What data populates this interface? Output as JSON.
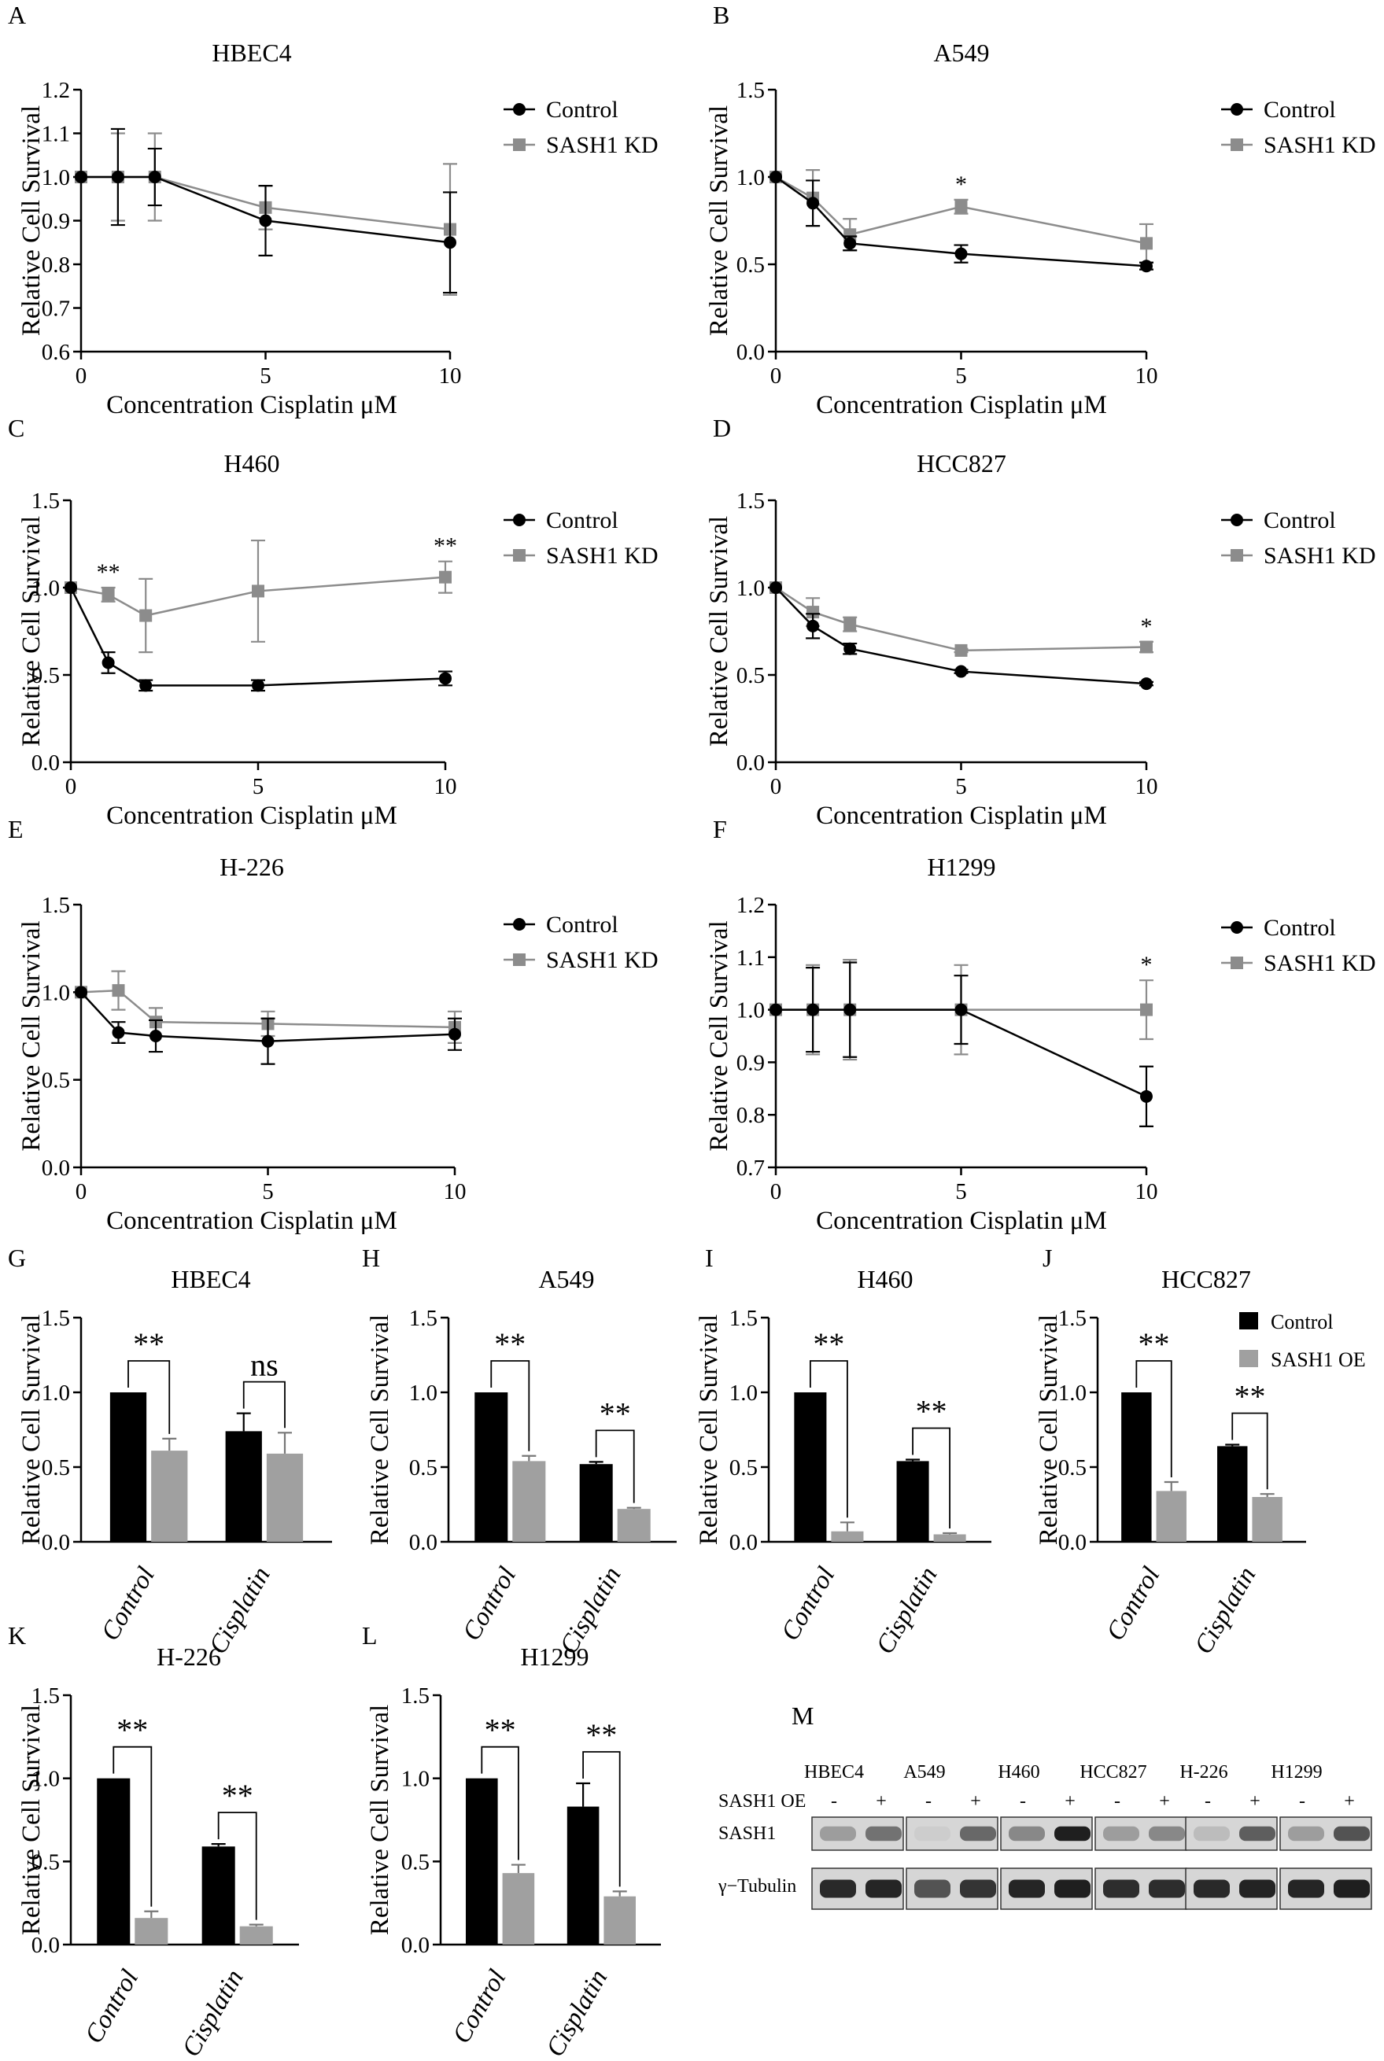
{
  "figure": {
    "western_blot": {
      "label": "M",
      "cell_lines": [
        "HBEC4",
        "A549",
        "H460",
        "HCC827",
        "H-226",
        "H1299"
      ],
      "condition_label": "SASH1 OE",
      "minus": "-",
      "plus": "+",
      "rows": [
        "SASH1",
        "γ−Tubulin"
      ]
    }
  },
  "chart_data": [
    {
      "label": "A",
      "type": "line",
      "title": "HBEC4",
      "xlabel": "Concentration Cisplatin μM",
      "ylabel": "Relative Cell Survival",
      "x": [
        0,
        1,
        2,
        5,
        10
      ],
      "xticks": [
        0,
        5,
        10
      ],
      "xticklabels": [
        "0",
        "5",
        "10"
      ],
      "xlim": [
        0,
        10
      ],
      "ylim": [
        0.6,
        1.2
      ],
      "yticks": [
        0.6,
        0.7,
        0.8,
        0.9,
        1.0,
        1.1,
        1.2
      ],
      "yticklabels": [
        "0.6",
        "0.7",
        "0.8",
        "0.9",
        "1.0",
        "1.1",
        "1.2"
      ],
      "series": [
        {
          "name": "Control",
          "color": "#000000",
          "marker": "circle",
          "values": [
            1.0,
            1.0,
            1.0,
            0.9,
            0.85
          ],
          "err": [
            0,
            0.11,
            0.065,
            0.08,
            0.115
          ]
        },
        {
          "name": "SASH1 KD",
          "color": "#8c8c8c",
          "marker": "square",
          "values": [
            1.0,
            1.0,
            1.0,
            0.93,
            0.88
          ],
          "err": [
            0,
            0.1,
            0.1,
            0.05,
            0.15
          ]
        }
      ],
      "annotations": [],
      "legend": "right"
    },
    {
      "label": "B",
      "type": "line",
      "title": "A549",
      "xlabel": "Concentration Cisplatin μM",
      "ylabel": "Relative Cell Survival",
      "x": [
        0,
        1,
        2,
        5,
        10
      ],
      "xticks": [
        0,
        5,
        10
      ],
      "xticklabels": [
        "0",
        "5",
        "10"
      ],
      "xlim": [
        0,
        10
      ],
      "ylim": [
        0,
        1.5
      ],
      "yticks": [
        0,
        0.5,
        1.0,
        1.5
      ],
      "yticklabels": [
        "0.0",
        "0.5",
        "1.0",
        "1.5"
      ],
      "series": [
        {
          "name": "Control",
          "color": "#000000",
          "marker": "circle",
          "values": [
            1.0,
            0.85,
            0.62,
            0.56,
            0.49
          ],
          "err": [
            0,
            0.13,
            0.04,
            0.05,
            0.02
          ]
        },
        {
          "name": "SASH1 KD",
          "color": "#8c8c8c",
          "marker": "square",
          "values": [
            1.0,
            0.88,
            0.67,
            0.83,
            0.62
          ],
          "err": [
            0,
            0.16,
            0.09,
            0.04,
            0.11
          ]
        }
      ],
      "annotations": [
        {
          "x": 5,
          "text": "*"
        }
      ],
      "legend": "right"
    },
    {
      "label": "C",
      "type": "line",
      "title": "H460",
      "xlabel": "Concentration Cisplatin μM",
      "ylabel": "Relative Cell Survival",
      "x": [
        0,
        1,
        2,
        5,
        10
      ],
      "xticks": [
        0,
        5,
        10
      ],
      "xticklabels": [
        "0",
        "5",
        "10"
      ],
      "xlim": [
        0,
        10
      ],
      "ylim": [
        0,
        1.5
      ],
      "yticks": [
        0,
        0.5,
        1.0,
        1.5
      ],
      "yticklabels": [
        "0.0",
        "0.5",
        "1.0",
        "1.5"
      ],
      "series": [
        {
          "name": "Control",
          "color": "#000000",
          "marker": "circle",
          "values": [
            1.0,
            0.57,
            0.44,
            0.44,
            0.48
          ],
          "err": [
            0,
            0.06,
            0.03,
            0.03,
            0.04
          ]
        },
        {
          "name": "SASH1 KD",
          "color": "#8c8c8c",
          "marker": "square",
          "values": [
            1.0,
            0.96,
            0.84,
            0.98,
            1.06
          ],
          "err": [
            0,
            0.04,
            0.21,
            0.29,
            0.09
          ]
        }
      ],
      "annotations": [
        {
          "x": 1,
          "text": "**"
        },
        {
          "x": 10,
          "text": "**"
        }
      ],
      "legend": "right"
    },
    {
      "label": "D",
      "type": "line",
      "title": "HCC827",
      "xlabel": "Concentration Cisplatin μM",
      "ylabel": "Relative Cell Survival",
      "x": [
        0,
        1,
        2,
        5,
        10
      ],
      "xticks": [
        0,
        5,
        10
      ],
      "xticklabels": [
        "0",
        "5",
        "10"
      ],
      "xlim": [
        0,
        10
      ],
      "ylim": [
        0,
        1.5
      ],
      "yticks": [
        0,
        0.5,
        1.0,
        1.5
      ],
      "yticklabels": [
        "0.0",
        "0.5",
        "1.0",
        "1.5"
      ],
      "series": [
        {
          "name": "Control",
          "color": "#000000",
          "marker": "circle",
          "values": [
            1.0,
            0.78,
            0.65,
            0.52,
            0.45
          ],
          "err": [
            0,
            0.07,
            0.03,
            0.01,
            0.01
          ]
        },
        {
          "name": "SASH1 KD",
          "color": "#8c8c8c",
          "marker": "square",
          "values": [
            1.0,
            0.86,
            0.79,
            0.64,
            0.66
          ],
          "err": [
            0,
            0.08,
            0.04,
            0.01,
            0.03
          ]
        }
      ],
      "annotations": [
        {
          "x": 10,
          "text": "*"
        }
      ],
      "legend": "right"
    },
    {
      "label": "E",
      "type": "line",
      "title": "H-226",
      "xlabel": "Concentration Cisplatin μM",
      "ylabel": "Relative Cell Survival",
      "x": [
        0,
        1,
        2,
        5,
        10
      ],
      "xticks": [
        0,
        5,
        10
      ],
      "xticklabels": [
        "0",
        "5",
        "10"
      ],
      "xlim": [
        0,
        10
      ],
      "ylim": [
        0,
        1.5
      ],
      "yticks": [
        0,
        0.5,
        1.0,
        1.5
      ],
      "yticklabels": [
        "0.0",
        "0.5",
        "1.0",
        "1.5"
      ],
      "series": [
        {
          "name": "Control",
          "color": "#000000",
          "marker": "circle",
          "values": [
            1.0,
            0.77,
            0.75,
            0.72,
            0.76
          ],
          "err": [
            0,
            0.06,
            0.09,
            0.13,
            0.09
          ]
        },
        {
          "name": "SASH1 KD",
          "color": "#8c8c8c",
          "marker": "square",
          "values": [
            1.0,
            1.01,
            0.83,
            0.82,
            0.8
          ],
          "err": [
            0,
            0.11,
            0.08,
            0.07,
            0.09
          ]
        }
      ],
      "annotations": [],
      "legend": "right"
    },
    {
      "label": "F",
      "type": "line",
      "title": "H1299",
      "xlabel": "Concentration Cisplatin μM",
      "ylabel": "Relative Cell Survival",
      "x": [
        0,
        1,
        2,
        5,
        10
      ],
      "xticks": [
        0,
        5,
        10
      ],
      "xticklabels": [
        "0",
        "5",
        "10"
      ],
      "xlim": [
        0,
        10
      ],
      "ylim": [
        0.7,
        1.2
      ],
      "yticks": [
        0.7,
        0.8,
        0.9,
        1.0,
        1.1,
        1.2
      ],
      "yticklabels": [
        "0.7",
        "0.8",
        "0.9",
        "1.0",
        "1.1",
        "1.2"
      ],
      "series": [
        {
          "name": "Control",
          "color": "#000000",
          "marker": "circle",
          "values": [
            1.0,
            1.0,
            1.0,
            1.0,
            0.835
          ],
          "err": [
            0,
            0.08,
            0.09,
            0.065,
            0.057
          ]
        },
        {
          "name": "SASH1 KD",
          "color": "#8c8c8c",
          "marker": "square",
          "values": [
            1.0,
            1.0,
            1.0,
            1.0,
            1.0
          ],
          "err": [
            0,
            0.085,
            0.095,
            0.085,
            0.056
          ]
        }
      ],
      "annotations": [
        {
          "x": 10,
          "text": "*"
        }
      ],
      "legend": "right"
    },
    {
      "label": "G",
      "type": "bar",
      "title": "HBEC4",
      "ylabel": "Relative Cell Survival",
      "categories": [
        "Control",
        "Cisplatin"
      ],
      "ylim": [
        0,
        1.5
      ],
      "yticks": [
        0,
        0.5,
        1.0,
        1.5
      ],
      "yticklabels": [
        "0.0",
        "0.5",
        "1.0",
        "1.5"
      ],
      "series": [
        {
          "name": "Control",
          "color": "#000000",
          "values": [
            1.0,
            0.74
          ],
          "err": [
            0,
            0.12
          ]
        },
        {
          "name": "SASH1 OE",
          "color": "#a0a0a0",
          "values": [
            0.61,
            0.59
          ],
          "err": [
            0.08,
            0.14
          ]
        }
      ],
      "significance": [
        "**",
        "ns"
      ]
    },
    {
      "label": "H",
      "type": "bar",
      "title": "A549",
      "ylabel": "Relative Cell Survival",
      "categories": [
        "Control",
        "Cisplatin"
      ],
      "ylim": [
        0,
        1.5
      ],
      "yticks": [
        0,
        0.5,
        1.0,
        1.5
      ],
      "yticklabels": [
        "0.0",
        "0.5",
        "1.0",
        "1.5"
      ],
      "series": [
        {
          "name": "Control",
          "color": "#000000",
          "values": [
            1.0,
            0.52
          ],
          "err": [
            0,
            0.015
          ]
        },
        {
          "name": "SASH1 OE",
          "color": "#a0a0a0",
          "values": [
            0.54,
            0.22
          ],
          "err": [
            0.035,
            0.008
          ]
        }
      ],
      "significance": [
        "**",
        "**"
      ]
    },
    {
      "label": "I",
      "type": "bar",
      "title": "H460",
      "ylabel": "Relative Cell Survival",
      "categories": [
        "Control",
        "Cisplatin"
      ],
      "ylim": [
        0,
        1.5
      ],
      "yticks": [
        0,
        0.5,
        1.0,
        1.5
      ],
      "yticklabels": [
        "0.0",
        "0.5",
        "1.0",
        "1.5"
      ],
      "series": [
        {
          "name": "Control",
          "color": "#000000",
          "values": [
            1.0,
            0.54
          ],
          "err": [
            0,
            0.01
          ]
        },
        {
          "name": "SASH1 OE",
          "color": "#a0a0a0",
          "values": [
            0.07,
            0.05
          ],
          "err": [
            0.06,
            0.008
          ]
        }
      ],
      "significance": [
        "**",
        "**"
      ]
    },
    {
      "label": "J",
      "type": "bar",
      "title": "HCC827",
      "ylabel": "Relative Cell Survival",
      "categories": [
        "Control",
        "Cisplatin"
      ],
      "ylim": [
        0,
        1.5
      ],
      "yticks": [
        0,
        0.5,
        1.0,
        1.5
      ],
      "yticklabels": [
        "0.0",
        "0.5",
        "1.0",
        "1.5"
      ],
      "series": [
        {
          "name": "Control",
          "color": "#000000",
          "values": [
            1.0,
            0.64
          ],
          "err": [
            0,
            0.01
          ]
        },
        {
          "name": "SASH1 OE",
          "color": "#a0a0a0",
          "values": [
            0.34,
            0.3
          ],
          "err": [
            0.06,
            0.02
          ]
        }
      ],
      "significance": [
        "**",
        "**"
      ],
      "legend": "top-right"
    },
    {
      "label": "K",
      "type": "bar",
      "title": "H-226",
      "ylabel": "Relative Cell Survival",
      "categories": [
        "Control",
        "Cisplatin"
      ],
      "ylim": [
        0,
        1.5
      ],
      "yticks": [
        0,
        0.5,
        1.0,
        1.5
      ],
      "yticklabels": [
        "0.0",
        "0.5",
        "1.0",
        "1.5"
      ],
      "series": [
        {
          "name": "Control",
          "color": "#000000",
          "values": [
            1.0,
            0.59
          ],
          "err": [
            0,
            0.015
          ]
        },
        {
          "name": "SASH1 OE",
          "color": "#a0a0a0",
          "values": [
            0.16,
            0.11
          ],
          "err": [
            0.04,
            0.01
          ]
        }
      ],
      "significance": [
        "**",
        "**"
      ]
    },
    {
      "label": "L",
      "type": "bar",
      "title": "H1299",
      "ylabel": "Relative Cell Survival",
      "categories": [
        "Control",
        "Cisplatin"
      ],
      "ylim": [
        0,
        1.5
      ],
      "yticks": [
        0,
        0.5,
        1.0,
        1.5
      ],
      "yticklabels": [
        "0.0",
        "0.5",
        "1.0",
        "1.5"
      ],
      "series": [
        {
          "name": "Control",
          "color": "#000000",
          "values": [
            1.0,
            0.83
          ],
          "err": [
            0,
            0.14
          ]
        },
        {
          "name": "SASH1 OE",
          "color": "#a0a0a0",
          "values": [
            0.43,
            0.29
          ],
          "err": [
            0.05,
            0.03
          ]
        }
      ],
      "significance": [
        "**",
        "**"
      ]
    }
  ]
}
